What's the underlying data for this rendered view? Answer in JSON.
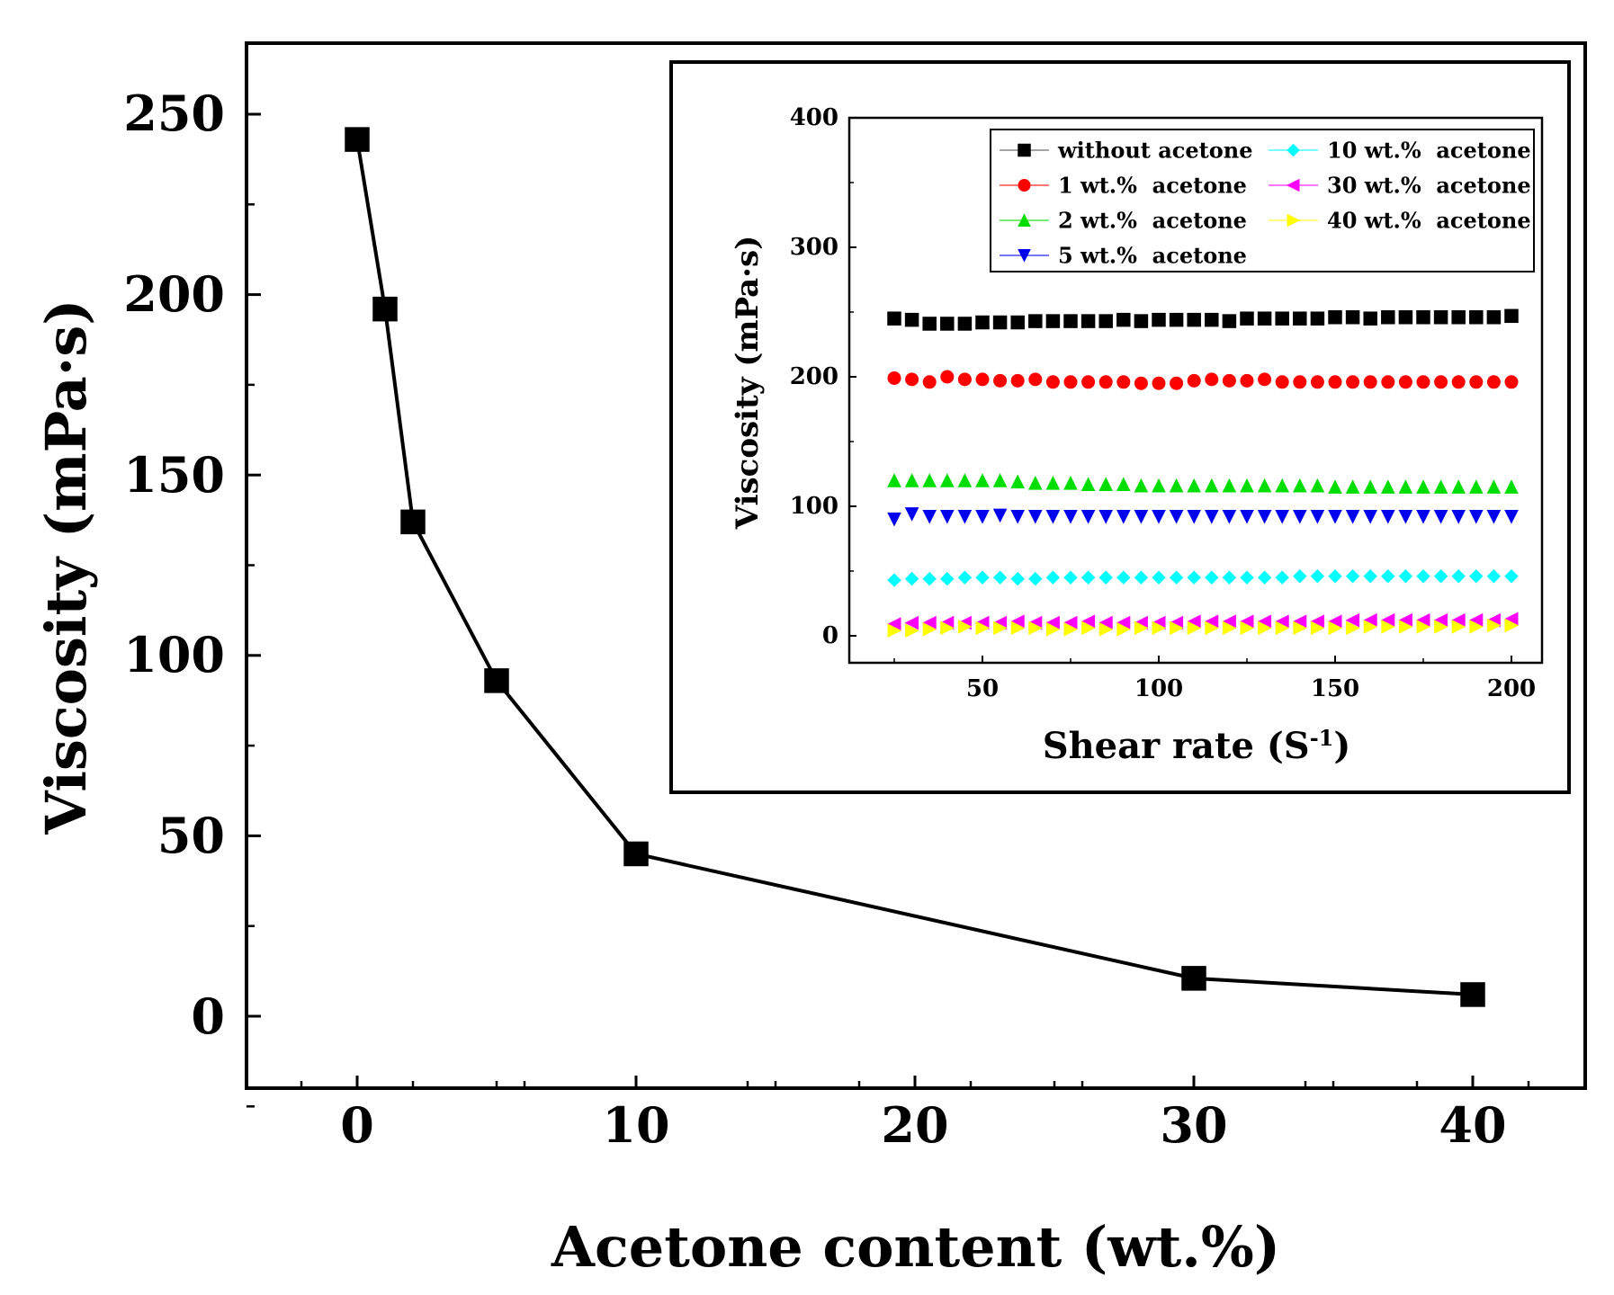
{
  "main_chart": {
    "xlabel": "Acetone content (wt.%)",
    "ylabel": "Viscosity (mPa·s)",
    "xticks": [
      "0",
      "10",
      "20",
      "30",
      "40"
    ],
    "yticks": [
      "0",
      "50",
      "100",
      "150",
      "200",
      "250"
    ]
  },
  "inset_chart": {
    "xlabel": "Shear rate (S",
    "xlabel_sup": "-1",
    "xlabel_close": ")",
    "ylabel": "Viscosity (mPa·s)",
    "xticks": [
      "50",
      "100",
      "150",
      "200"
    ],
    "yticks": [
      "0",
      "100",
      "200",
      "300",
      "400"
    ],
    "legend": [
      "without acetone",
      "1 wt.%  acetone",
      "2 wt.%  acetone",
      "5 wt.%  acetone",
      "10 wt.%  acetone",
      "30 wt.%  acetone",
      "40 wt.%  acetone"
    ]
  },
  "chart_data": [
    {
      "type": "line",
      "xlabel": "Acetone content (wt.%)",
      "ylabel": "Viscosity (mPa·s)",
      "xlim": [
        -4,
        44
      ],
      "ylim": [
        -20,
        270
      ],
      "x_ticks": [
        0,
        10,
        20,
        30,
        40
      ],
      "y_ticks": [
        0,
        50,
        100,
        150,
        200,
        250
      ],
      "grid": false,
      "series": [
        {
          "color": "#000000",
          "marker": "square",
          "x": [
            0,
            1,
            2,
            5,
            10,
            30,
            40
          ],
          "y": [
            243,
            196,
            137,
            93,
            45,
            10.5,
            6
          ]
        }
      ]
    },
    {
      "type": "scatter",
      "xlabel": "Shear rate (S-1)",
      "ylabel": "Viscosity (mPa·s)",
      "xlim": [
        20,
        210
      ],
      "ylim": [
        -20,
        400
      ],
      "x_ticks": [
        50,
        100,
        150,
        200
      ],
      "y_ticks": [
        0,
        100,
        200,
        300,
        400
      ],
      "grid": false,
      "legend_position": "top-right",
      "x": [
        25,
        30,
        35,
        40,
        45,
        50,
        55,
        60,
        65,
        70,
        75,
        80,
        85,
        90,
        95,
        100,
        105,
        110,
        115,
        120,
        125,
        130,
        135,
        140,
        145,
        150,
        155,
        160,
        165,
        170,
        175,
        180,
        185,
        190,
        195,
        200
      ],
      "series": [
        {
          "name": "without acetone",
          "color": "#000000",
          "marker": "square",
          "y": [
            245,
            244,
            241,
            241,
            241,
            242,
            242,
            242,
            243,
            243,
            243,
            243,
            243,
            244,
            243,
            244,
            244,
            244,
            244,
            243,
            245,
            245,
            245,
            245,
            245,
            246,
            246,
            245,
            246,
            246,
            246,
            246,
            246,
            246,
            246,
            247
          ]
        },
        {
          "name": "1 wt.%  acetone",
          "color": "#ff0000",
          "marker": "circle",
          "y": [
            199,
            198,
            196,
            200,
            198,
            198,
            197,
            197,
            198,
            196,
            196,
            196,
            196,
            196,
            195,
            195,
            195,
            197,
            198,
            197,
            197,
            198,
            196,
            196,
            196,
            196,
            196,
            196,
            196,
            196,
            196,
            196,
            196,
            196,
            196,
            196
          ]
        },
        {
          "name": "2 wt.%  acetone",
          "color": "#00dd00",
          "marker": "triangle-up",
          "y": [
            120,
            120,
            120,
            120,
            120,
            120,
            120,
            119,
            118,
            118,
            118,
            117,
            117,
            117,
            116,
            116,
            116,
            116,
            116,
            116,
            116,
            116,
            116,
            116,
            116,
            115,
            115,
            115,
            115,
            115,
            115,
            115,
            115,
            115,
            115,
            115
          ]
        },
        {
          "name": "5 wt.%  acetone",
          "color": "#0000ee",
          "marker": "triangle-down",
          "y": [
            90,
            94,
            92,
            92,
            92,
            92,
            93,
            92,
            92,
            92,
            92,
            92,
            92,
            92,
            92,
            92,
            92,
            92,
            92,
            92,
            92,
            92,
            92,
            92,
            92,
            92,
            92,
            92,
            92,
            92,
            92,
            92,
            92,
            92,
            92,
            92
          ]
        },
        {
          "name": "10 wt.%  acetone",
          "color": "#00ffff",
          "marker": "diamond",
          "y": [
            43,
            44,
            44,
            44,
            45,
            45,
            45,
            44,
            44,
            45,
            45,
            45,
            45,
            45,
            45,
            45,
            45,
            45,
            45,
            45,
            45,
            45,
            45,
            46,
            46,
            46,
            46,
            46,
            46,
            46,
            46,
            46,
            46,
            46,
            46,
            46
          ]
        },
        {
          "name": "30 wt.%  acetone",
          "color": "#ff00ff",
          "marker": "triangle-left",
          "y": [
            9,
            10,
            10,
            10,
            10,
            10,
            10,
            11,
            10,
            10,
            10,
            11,
            10,
            10,
            10,
            10,
            10,
            11,
            11,
            11,
            11,
            11,
            11,
            11,
            11,
            11,
            12,
            12,
            12,
            12,
            12,
            12,
            12,
            12,
            12,
            13
          ]
        },
        {
          "name": "40 wt.%  acetone",
          "color": "#ffff00",
          "marker": "triangle-right",
          "y": [
            4,
            4,
            5,
            6,
            7,
            6,
            6,
            6,
            6,
            5,
            5,
            6,
            5,
            5,
            6,
            6,
            6,
            6,
            6,
            6,
            6,
            6,
            6,
            6,
            6,
            6,
            6,
            7,
            7,
            7,
            7,
            7,
            7,
            7,
            8,
            8
          ]
        }
      ]
    }
  ]
}
